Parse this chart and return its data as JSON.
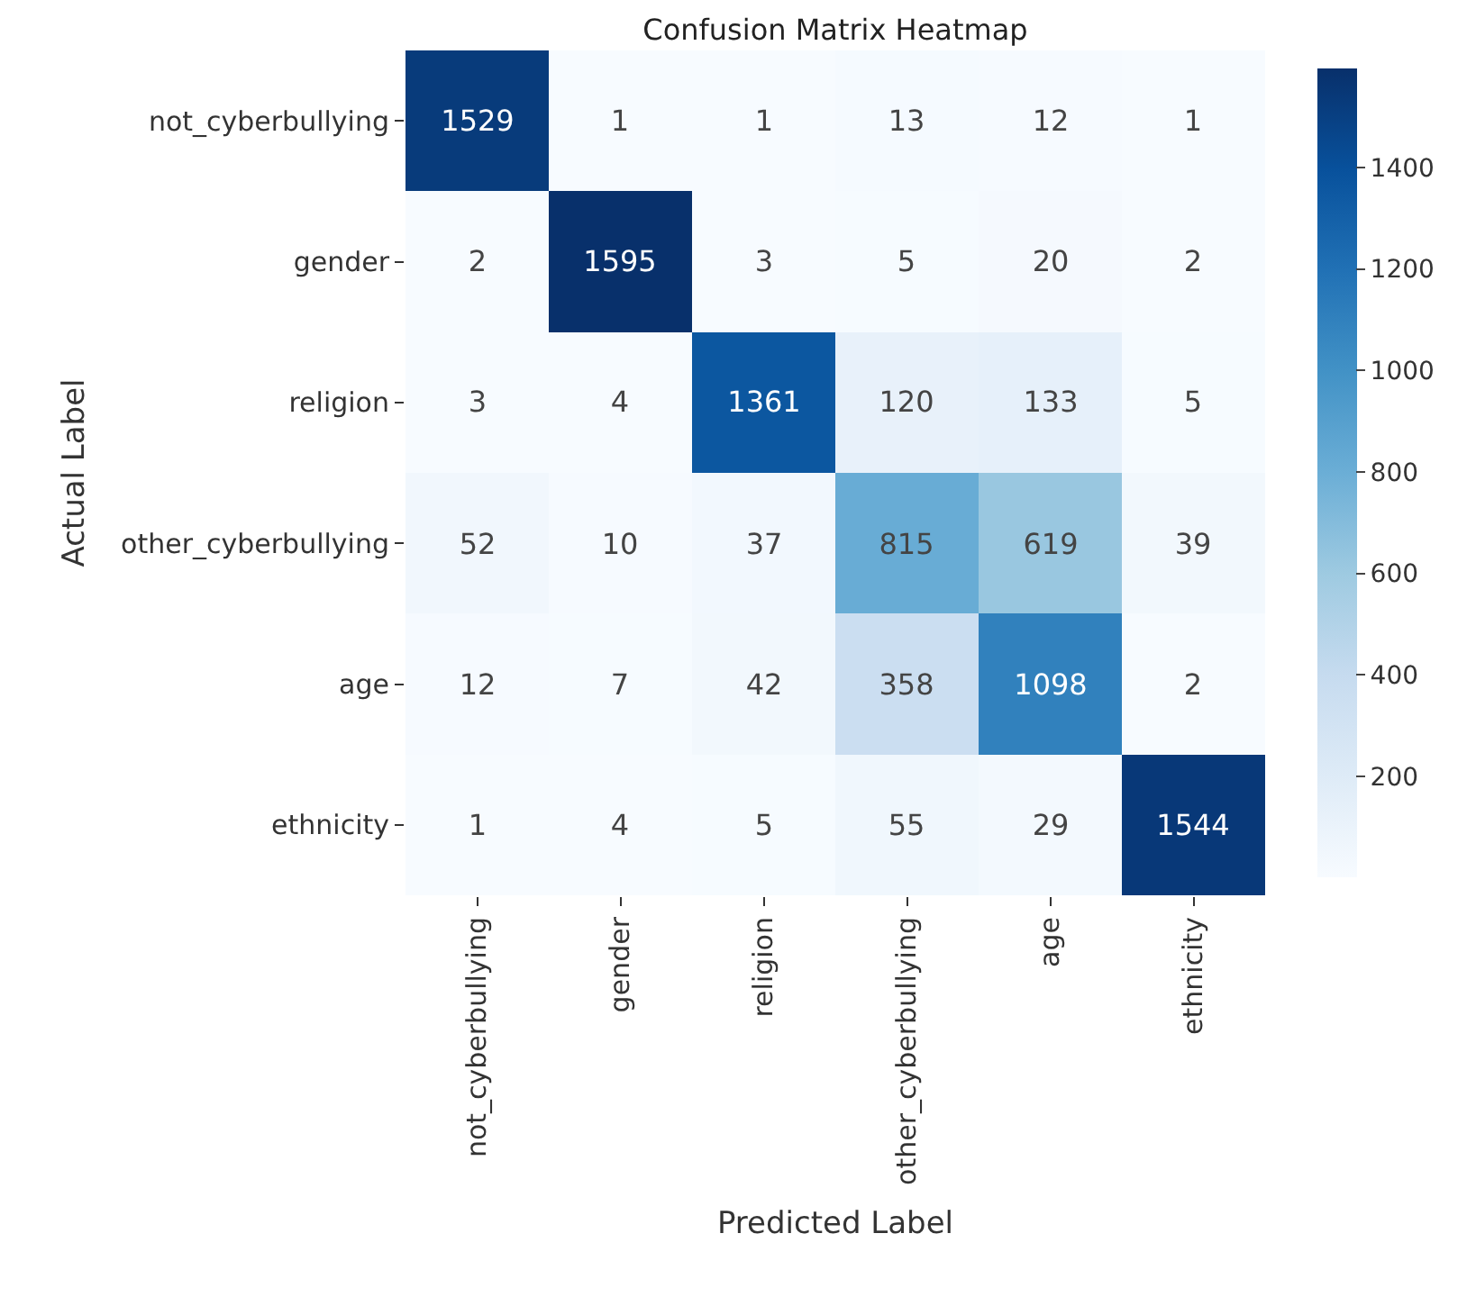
{
  "chart_data": {
    "type": "heatmap",
    "title": "Confusion Matrix Heatmap",
    "xlabel": "Predicted Label",
    "ylabel": "Actual Label",
    "categories": [
      "not_cyberbullying",
      "gender",
      "religion",
      "other_cyberbullying",
      "age",
      "ethnicity"
    ],
    "y_categories": [
      "not_cyberbullying",
      "gender",
      "religion",
      "other_cyberbullying",
      "age",
      "ethnicity"
    ],
    "cells": [
      [
        1529,
        1,
        1,
        13,
        12,
        1
      ],
      [
        2,
        1595,
        3,
        5,
        20,
        2
      ],
      [
        3,
        4,
        1361,
        120,
        133,
        5
      ],
      [
        52,
        10,
        37,
        815,
        619,
        39
      ],
      [
        12,
        7,
        42,
        358,
        1098,
        2
      ],
      [
        1,
        4,
        5,
        55,
        29,
        1544
      ]
    ],
    "clim": [
      1,
      1595
    ],
    "cticks": [
      200,
      400,
      600,
      800,
      1000,
      1200,
      1400
    ],
    "data_labels": true
  }
}
